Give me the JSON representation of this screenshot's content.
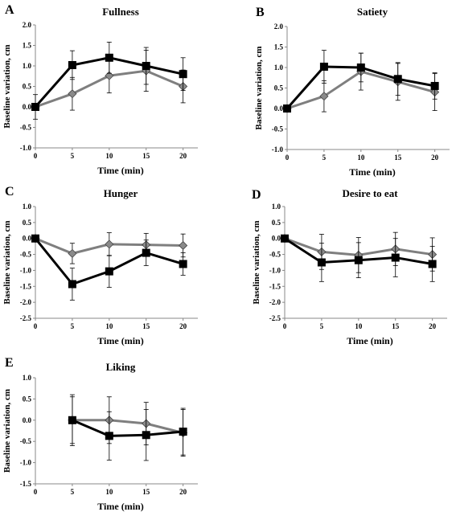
{
  "chart_data": [
    {
      "type": "line",
      "panel": "A",
      "title": "Fullness",
      "xlabel": "Time (min)",
      "ylabel": "Baseline variation, cm",
      "xlim": [
        0,
        22
      ],
      "ylim": [
        -1.0,
        2.0
      ],
      "xticks": [
        0,
        5,
        10,
        15,
        20
      ],
      "yticks": [
        -1.0,
        -0.5,
        0.0,
        0.5,
        1.0,
        1.5,
        2.0
      ],
      "ytick_labels": [
        "-1.0",
        "-0.5",
        "0.0",
        "0.5",
        "1.0",
        "1.5",
        "2.0"
      ],
      "series": [
        {
          "marker": "square",
          "color": "#000000",
          "x": [
            0,
            5,
            10,
            15,
            20
          ],
          "values": [
            0.0,
            1.02,
            1.2,
            1.0,
            0.8
          ],
          "errors": [
            0.0,
            0.35,
            0.38,
            0.45,
            0.4
          ]
        },
        {
          "marker": "diamond",
          "color": "#7f7f7f",
          "x": [
            0,
            5,
            10,
            15,
            20
          ],
          "values": [
            0.0,
            0.32,
            0.76,
            0.88,
            0.5
          ],
          "errors": [
            0.3,
            0.4,
            0.42,
            0.5,
            0.4
          ]
        }
      ]
    },
    {
      "type": "line",
      "panel": "B",
      "title": "Satiety",
      "xlabel": "Time (min)",
      "ylabel": "Baseline variation, cm",
      "xlim": [
        0,
        22
      ],
      "ylim": [
        -1.0,
        2.0
      ],
      "xticks": [
        0,
        5,
        10,
        15,
        20
      ],
      "yticks": [
        -1.0,
        -0.5,
        0.0,
        0.5,
        1.0,
        1.5,
        2.0
      ],
      "ytick_labels": [
        "-1.0",
        "-0.5",
        "0.0",
        "0.5",
        "1.0",
        "1.5",
        "2.0"
      ],
      "series": [
        {
          "marker": "square",
          "color": "#000000",
          "x": [
            0,
            5,
            10,
            15,
            20
          ],
          "values": [
            0.0,
            1.02,
            1.0,
            0.72,
            0.55
          ],
          "errors": [
            0.0,
            0.4,
            0.35,
            0.4,
            0.32
          ]
        },
        {
          "marker": "diamond",
          "color": "#7f7f7f",
          "x": [
            0,
            5,
            10,
            15,
            20
          ],
          "values": [
            0.0,
            0.3,
            0.9,
            0.65,
            0.4
          ],
          "errors": [
            0.0,
            0.38,
            0.45,
            0.45,
            0.45
          ]
        }
      ]
    },
    {
      "type": "line",
      "panel": "C",
      "title": "Hunger",
      "xlabel": "Time (min)",
      "ylabel": "Baseline variation, cm",
      "xlim": [
        0,
        22
      ],
      "ylim": [
        -2.5,
        1.0
      ],
      "xticks": [
        0,
        5,
        10,
        15,
        20
      ],
      "yticks": [
        -2.5,
        -2.0,
        -1.5,
        -1.0,
        -0.5,
        0.0,
        0.5,
        1.0
      ],
      "ytick_labels": [
        "-2.5",
        "-2.0",
        "-1.5",
        "-1.0",
        "-0.5",
        "0.0",
        "0.5",
        "1.0"
      ],
      "series": [
        {
          "marker": "square",
          "color": "#000000",
          "x": [
            0,
            5,
            10,
            15,
            20
          ],
          "values": [
            0.0,
            -1.43,
            -1.03,
            -0.45,
            -0.8
          ],
          "errors": [
            0.0,
            0.5,
            0.5,
            0.4,
            0.35
          ]
        },
        {
          "marker": "diamond",
          "color": "#7f7f7f",
          "x": [
            0,
            5,
            10,
            15,
            20
          ],
          "values": [
            0.0,
            -0.47,
            -0.18,
            -0.2,
            -0.22
          ],
          "errors": [
            0.0,
            0.32,
            0.36,
            0.36,
            0.36
          ]
        }
      ]
    },
    {
      "type": "line",
      "panel": "D",
      "title": "Desire to eat",
      "xlabel": "Time (min)",
      "ylabel": "Baseline variation, cm",
      "xlim": [
        0,
        22
      ],
      "ylim": [
        -2.5,
        1.0
      ],
      "xticks": [
        0,
        5,
        10,
        15,
        20
      ],
      "yticks": [
        -2.5,
        -2.0,
        -1.5,
        -1.0,
        -0.5,
        0.0,
        0.5,
        1.0
      ],
      "ytick_labels": [
        "-2.5",
        "-2.0",
        "-1.5",
        "-1.0",
        "-0.5",
        "0.0",
        "0.5",
        "1.0"
      ],
      "series": [
        {
          "marker": "square",
          "color": "#000000",
          "x": [
            0,
            5,
            10,
            15,
            20
          ],
          "values": [
            0.0,
            -0.75,
            -0.68,
            -0.6,
            -0.8
          ],
          "errors": [
            0.0,
            0.6,
            0.55,
            0.6,
            0.55
          ]
        },
        {
          "marker": "diamond",
          "color": "#7f7f7f",
          "x": [
            0,
            5,
            10,
            15,
            20
          ],
          "values": [
            0.0,
            -0.42,
            -0.52,
            -0.33,
            -0.5
          ],
          "errors": [
            0.0,
            0.55,
            0.55,
            0.52,
            0.52
          ]
        }
      ]
    },
    {
      "type": "line",
      "panel": "E",
      "title": "Liking",
      "xlabel": "Time (min)",
      "ylabel": "Baseline variation, cm",
      "xlim": [
        0,
        22
      ],
      "ylim": [
        -1.5,
        1.0
      ],
      "xticks": [
        0,
        5,
        10,
        15,
        20
      ],
      "yticks": [
        -1.5,
        -1.0,
        -0.5,
        0.0,
        0.5,
        1.0
      ],
      "ytick_labels": [
        "-1.5",
        "-1.0",
        "-0.5",
        "0.0",
        "0.5",
        "1.0"
      ],
      "series": [
        {
          "marker": "square",
          "color": "#000000",
          "x": [
            5,
            10,
            15,
            20
          ],
          "values": [
            0.0,
            -0.37,
            -0.35,
            -0.27
          ],
          "errors": [
            0.55,
            0.57,
            0.6,
            0.55
          ]
        },
        {
          "marker": "diamond",
          "color": "#7f7f7f",
          "x": [
            5,
            10,
            15,
            20
          ],
          "values": [
            0.0,
            0.0,
            -0.08,
            -0.3
          ],
          "errors": [
            0.6,
            0.55,
            0.5,
            0.55
          ]
        }
      ]
    }
  ]
}
